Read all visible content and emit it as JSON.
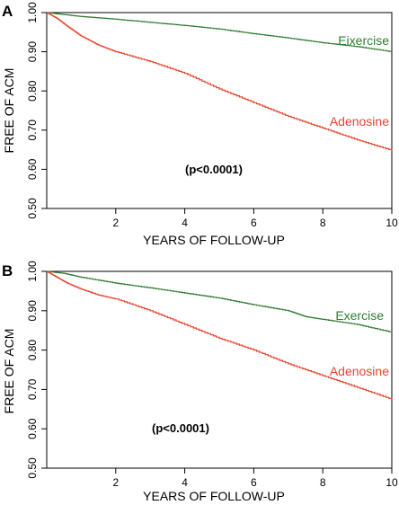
{
  "colors": {
    "exercise": "#2e7d32",
    "adenosine": "#e8432e",
    "axis": "#000000"
  },
  "chart_data": [
    {
      "panel": "A",
      "type": "line",
      "xlabel": "YEARS OF FOLLOW-UP",
      "ylabel": "FREE OF ACM",
      "xlim": [
        0,
        10
      ],
      "ylim": [
        0.5,
        1.0
      ],
      "x_ticks": [
        2,
        4,
        6,
        8,
        10
      ],
      "y_ticks": [
        "0.50",
        "0.60",
        "0.70",
        "0.80",
        "0.90",
        "1.00"
      ],
      "annotation": "(p<0.0001)",
      "series": [
        {
          "name": "Eixercise",
          "color": "#2e7d32",
          "x": [
            0,
            0.5,
            1,
            2,
            3,
            4,
            5,
            6,
            7,
            8,
            9,
            10
          ],
          "y": [
            1.0,
            0.995,
            0.99,
            0.983,
            0.975,
            0.967,
            0.958,
            0.946,
            0.935,
            0.923,
            0.913,
            0.9
          ]
        },
        {
          "name": "Adenosine",
          "color": "#e8432e",
          "x": [
            0,
            0.3,
            0.6,
            1,
            1.5,
            2,
            3,
            4,
            5,
            6,
            7,
            8,
            9,
            10
          ],
          "y": [
            1.0,
            0.985,
            0.965,
            0.94,
            0.917,
            0.9,
            0.875,
            0.845,
            0.805,
            0.77,
            0.735,
            0.705,
            0.675,
            0.648
          ]
        }
      ]
    },
    {
      "panel": "B",
      "type": "line",
      "xlabel": "YEARS OF FOLLOW-UP",
      "ylabel": "FREE OF ACM",
      "xlim": [
        0,
        10
      ],
      "ylim": [
        0.5,
        1.0
      ],
      "x_ticks": [
        2,
        4,
        6,
        8,
        10
      ],
      "y_ticks": [
        "0.50",
        "0.60",
        "0.70",
        "0.80",
        "0.90",
        "1.00"
      ],
      "annotation": "(p<0.0001)",
      "series": [
        {
          "name": "Exercise",
          "color": "#2e7d32",
          "x": [
            0,
            0.5,
            1,
            2,
            3,
            4,
            5,
            6,
            7,
            7.5,
            8,
            9,
            10
          ],
          "y": [
            1.0,
            0.995,
            0.985,
            0.97,
            0.958,
            0.945,
            0.932,
            0.915,
            0.9,
            0.885,
            0.878,
            0.865,
            0.845
          ]
        },
        {
          "name": "Adenosine",
          "color": "#e8432e",
          "x": [
            0,
            0.3,
            0.6,
            1,
            1.5,
            2,
            3,
            4,
            5,
            6,
            7,
            8,
            9,
            10
          ],
          "y": [
            1.0,
            0.985,
            0.97,
            0.955,
            0.94,
            0.93,
            0.9,
            0.865,
            0.83,
            0.8,
            0.765,
            0.735,
            0.705,
            0.675
          ]
        }
      ]
    }
  ]
}
